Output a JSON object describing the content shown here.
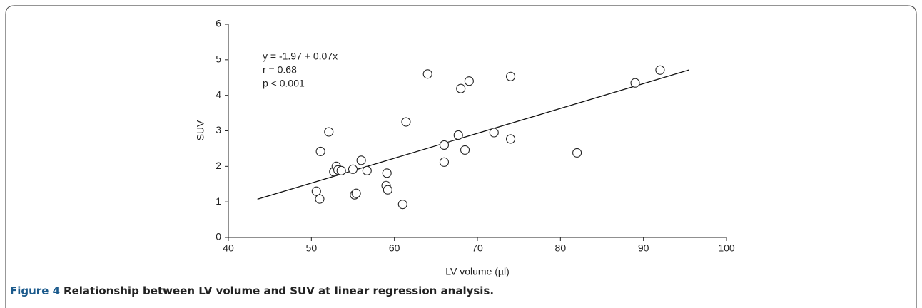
{
  "chart_data": {
    "type": "scatter",
    "caption_label": "Figure 4",
    "caption": "Relationship between LV volume and SUV at linear regression analysis.",
    "x_label": "LV volume (µl)",
    "y_label": "SUV",
    "annotations": [
      "y = -1.97 + 0.07x",
      "r = 0.68",
      "p < 0.001"
    ],
    "xlim": [
      40,
      100
    ],
    "xticks": [
      40,
      50,
      60,
      70,
      80,
      90,
      100
    ],
    "ylim": [
      0,
      6
    ],
    "yticks": [
      0,
      1,
      2,
      3,
      4,
      5,
      6
    ],
    "series": [
      {
        "x": [
          50.6,
          51,
          51.1,
          52.1,
          52.7,
          53,
          53.2,
          53.6,
          55,
          55.2,
          55.4,
          56,
          56.7,
          59.1,
          59,
          59.2,
          61,
          61.4,
          64,
          66,
          66,
          67.7,
          68,
          68.5,
          69,
          72,
          74,
          74,
          82,
          89,
          92
        ],
        "values": [
          1.3,
          1.08,
          2.42,
          2.97,
          1.85,
          2.0,
          1.9,
          1.88,
          1.92,
          1.2,
          1.24,
          2.17,
          1.88,
          1.81,
          1.46,
          1.34,
          0.93,
          3.25,
          4.6,
          2.6,
          2.12,
          2.88,
          4.19,
          2.46,
          4.4,
          2.95,
          4.53,
          2.77,
          2.38,
          4.35,
          4.71
        ],
        "color": "#222222"
      }
    ],
    "fit_line": {
      "x": [
        43.5,
        95.5
      ],
      "values": [
        1.075,
        4.715
      ],
      "color": "#111111"
    }
  }
}
